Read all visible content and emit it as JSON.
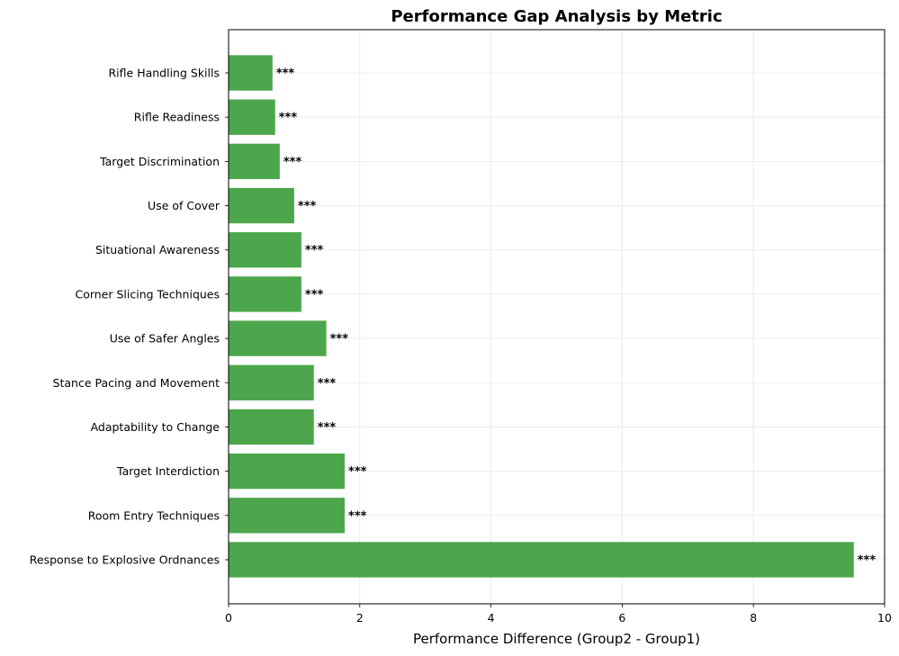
{
  "chart_data": {
    "type": "bar",
    "orientation": "horizontal",
    "title": "Performance Gap Analysis by Metric",
    "xlabel": "Performance Difference (Group2 - Group1)",
    "ylabel": "",
    "xlim": [
      0,
      10
    ],
    "xticks": [
      "0",
      "2",
      "4",
      "6",
      "8",
      "10"
    ],
    "grid": true,
    "bar_color": "#4CA64C",
    "categories": [
      "Rifle Handling Skills",
      "Rifle Readiness",
      "Target Discrimination",
      "Use of Cover",
      "Situational Awareness",
      "Corner Slicing Techniques",
      "Use of Safer Angles",
      "Stance Pacing and Movement",
      "Adaptability to Change",
      "Target Interdiction",
      "Room Entry Techniques",
      "Response to Explosive Ordnances"
    ],
    "values": [
      0.67,
      0.71,
      0.78,
      1.0,
      1.11,
      1.11,
      1.49,
      1.3,
      1.3,
      1.77,
      1.77,
      9.53
    ],
    "annotations": [
      "***",
      "***",
      "***",
      "***",
      "***",
      "***",
      "***",
      "***",
      "***",
      "***",
      "***",
      "***"
    ]
  }
}
